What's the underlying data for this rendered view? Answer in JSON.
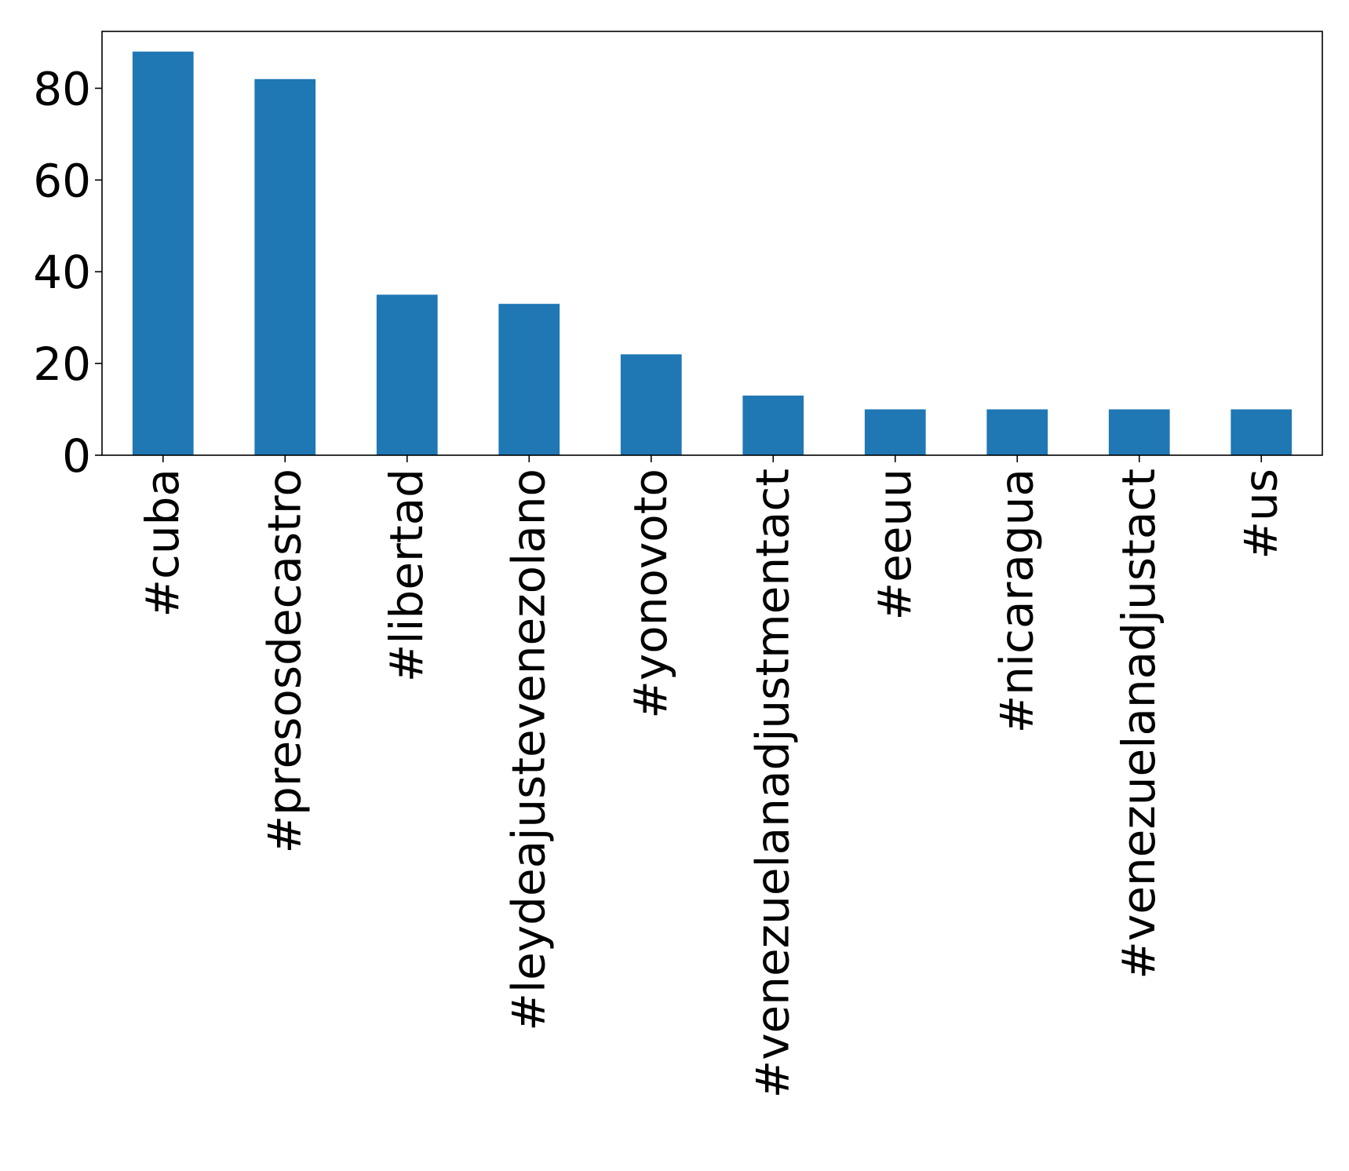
{
  "chart_data": {
    "type": "bar",
    "title": "",
    "xlabel": "",
    "ylabel": "",
    "categories": [
      "#cuba",
      "#presosdecastro",
      "#libertad",
      "#leydeajustevenezolano",
      "#yonovoto",
      "#venezuelanadjustmentact",
      "#eeuu",
      "#nicaragua",
      "#venezuelanadjustact",
      "#us"
    ],
    "values": [
      88,
      82,
      35,
      33,
      22,
      13,
      10,
      10,
      10,
      10
    ],
    "ylim": [
      0,
      92.4
    ],
    "yticks": [
      0,
      20,
      40,
      60,
      80
    ],
    "grid": false,
    "legend": "none",
    "bar_color": "#1f77b4"
  }
}
